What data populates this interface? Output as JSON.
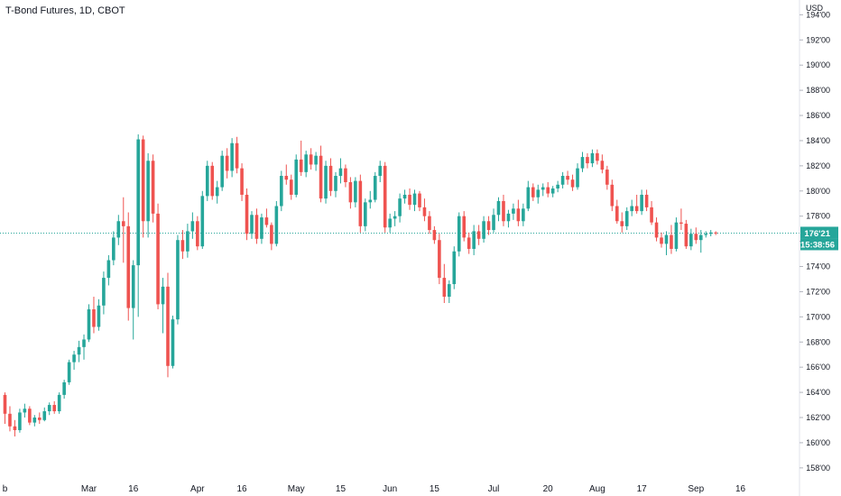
{
  "title": "T-Bond Futures, 1D, CBOT",
  "currency_label": "USD",
  "colors": {
    "up": "#26a69a",
    "down": "#ef5350",
    "axis_text": "#131722",
    "last_price_line": "#26a69a"
  },
  "last_price": {
    "value": "176'21",
    "countdown": "15:38:56",
    "y": 176.656
  },
  "chart_data": {
    "type": "candlestick",
    "title": "T-Bond Futures, 1D, CBOT",
    "ylim": [
      157.2,
      194.6
    ],
    "y_ticks": [
      {
        "value": 158,
        "label": "158'00"
      },
      {
        "value": 160,
        "label": "160'00"
      },
      {
        "value": 162,
        "label": "162'00"
      },
      {
        "value": 164,
        "label": "164'00"
      },
      {
        "value": 166,
        "label": "166'00"
      },
      {
        "value": 168,
        "label": "168'00"
      },
      {
        "value": 170,
        "label": "170'00"
      },
      {
        "value": 172,
        "label": "172'00"
      },
      {
        "value": 174,
        "label": "174'00"
      },
      {
        "value": 176,
        "label": "176'00"
      },
      {
        "value": 178,
        "label": "178'00"
      },
      {
        "value": 180,
        "label": "180'00"
      },
      {
        "value": 182,
        "label": "182'00"
      },
      {
        "value": 184,
        "label": "184'00"
      },
      {
        "value": 186,
        "label": "186'00"
      },
      {
        "value": 188,
        "label": "188'00"
      },
      {
        "value": 190,
        "label": "190'00"
      },
      {
        "value": 192,
        "label": "192'00"
      },
      {
        "value": 194,
        "label": "194'00"
      }
    ],
    "x_ticks": [
      {
        "index": 0,
        "label": "b"
      },
      {
        "index": 17,
        "label": "Mar"
      },
      {
        "index": 26,
        "label": "16"
      },
      {
        "index": 39,
        "label": "Apr"
      },
      {
        "index": 48,
        "label": "16"
      },
      {
        "index": 59,
        "label": "May"
      },
      {
        "index": 68,
        "label": "15"
      },
      {
        "index": 78,
        "label": "Jun"
      },
      {
        "index": 87,
        "label": "15"
      },
      {
        "index": 99,
        "label": "Jul"
      },
      {
        "index": 110,
        "label": "20"
      },
      {
        "index": 120,
        "label": "Aug"
      },
      {
        "index": 129,
        "label": "17"
      },
      {
        "index": 140,
        "label": "Sep"
      },
      {
        "index": 149,
        "label": "16"
      }
    ],
    "ohlc": [
      [
        163.8,
        164.0,
        161.5,
        162.3
      ],
      [
        162.3,
        162.9,
        160.9,
        161.3
      ],
      [
        161.3,
        161.8,
        160.5,
        161.0
      ],
      [
        161.0,
        162.7,
        160.8,
        162.4
      ],
      [
        162.4,
        163.1,
        162.0,
        162.7
      ],
      [
        162.7,
        162.9,
        161.4,
        161.6
      ],
      [
        161.6,
        162.2,
        161.3,
        162.0
      ],
      [
        162.0,
        162.4,
        161.5,
        161.8
      ],
      [
        161.8,
        162.8,
        161.7,
        162.5
      ],
      [
        162.5,
        163.2,
        162.2,
        163.0
      ],
      [
        163.0,
        163.3,
        162.3,
        162.5
      ],
      [
        162.5,
        164.0,
        162.3,
        163.8
      ],
      [
        163.8,
        165.0,
        163.5,
        164.8
      ],
      [
        164.8,
        166.6,
        164.6,
        166.4
      ],
      [
        166.4,
        167.3,
        165.8,
        167.0
      ],
      [
        167.0,
        168.1,
        166.4,
        167.6
      ],
      [
        167.6,
        168.6,
        166.6,
        168.2
      ],
      [
        168.2,
        171.0,
        168.0,
        170.6
      ],
      [
        170.6,
        171.6,
        168.7,
        169.2
      ],
      [
        169.2,
        171.4,
        168.9,
        170.9
      ],
      [
        170.9,
        173.6,
        170.2,
        173.1
      ],
      [
        173.1,
        174.9,
        172.5,
        174.5
      ],
      [
        174.5,
        176.8,
        174.1,
        176.3
      ],
      [
        176.3,
        178.1,
        175.7,
        177.6
      ],
      [
        177.6,
        179.5,
        174.3,
        177.2
      ],
      [
        177.2,
        178.3,
        169.7,
        170.7
      ],
      [
        170.7,
        174.5,
        168.2,
        174.1
      ],
      [
        174.1,
        184.5,
        170.0,
        184.1
      ],
      [
        184.1,
        184.4,
        176.3,
        177.6
      ],
      [
        177.6,
        183.0,
        176.3,
        182.4
      ],
      [
        182.4,
        182.9,
        177.5,
        178.2
      ],
      [
        178.2,
        179.0,
        170.6,
        171.0
      ],
      [
        171.0,
        173.1,
        168.7,
        172.4
      ],
      [
        172.4,
        173.5,
        165.2,
        166.1
      ],
      [
        166.1,
        170.1,
        165.9,
        169.8
      ],
      [
        169.8,
        176.5,
        169.4,
        176.1
      ],
      [
        176.1,
        176.9,
        174.6,
        175.2
      ],
      [
        175.2,
        177.4,
        174.7,
        176.8
      ],
      [
        176.8,
        178.3,
        176.2,
        177.6
      ],
      [
        177.6,
        178.0,
        175.3,
        175.6
      ],
      [
        175.6,
        180.0,
        175.4,
        179.6
      ],
      [
        179.6,
        182.4,
        179.2,
        182.0
      ],
      [
        182.0,
        182.3,
        179.3,
        179.6
      ],
      [
        179.6,
        180.8,
        179.0,
        180.3
      ],
      [
        180.3,
        183.2,
        180.0,
        182.8
      ],
      [
        182.8,
        183.4,
        181.0,
        181.6
      ],
      [
        181.6,
        184.2,
        181.1,
        183.8
      ],
      [
        183.8,
        184.3,
        181.4,
        181.8
      ],
      [
        181.8,
        182.2,
        179.2,
        179.7
      ],
      [
        179.7,
        180.2,
        176.1,
        176.6
      ],
      [
        176.6,
        178.4,
        176.2,
        178.1
      ],
      [
        178.1,
        178.6,
        175.8,
        176.2
      ],
      [
        176.2,
        178.2,
        175.8,
        177.9
      ],
      [
        177.9,
        178.6,
        177.1,
        177.3
      ],
      [
        177.3,
        177.5,
        175.3,
        175.8
      ],
      [
        175.8,
        179.2,
        175.6,
        178.8
      ],
      [
        178.8,
        181.6,
        178.4,
        181.2
      ],
      [
        181.2,
        182.1,
        180.5,
        180.9
      ],
      [
        180.9,
        181.3,
        179.3,
        179.7
      ],
      [
        179.7,
        182.9,
        179.5,
        182.5
      ],
      [
        182.5,
        184.0,
        181.2,
        181.5
      ],
      [
        181.5,
        183.2,
        181.1,
        182.9
      ],
      [
        182.9,
        183.4,
        181.7,
        182.1
      ],
      [
        182.1,
        183.1,
        181.6,
        182.8
      ],
      [
        182.8,
        183.6,
        179.1,
        179.4
      ],
      [
        179.4,
        182.4,
        179.0,
        182.0
      ],
      [
        182.0,
        182.6,
        179.6,
        180.0
      ],
      [
        180.0,
        181.5,
        179.5,
        181.2
      ],
      [
        181.2,
        182.6,
        180.6,
        181.8
      ],
      [
        181.8,
        182.1,
        180.3,
        180.7
      ],
      [
        180.7,
        181.1,
        178.6,
        179.1
      ],
      [
        179.1,
        181.1,
        178.7,
        180.8
      ],
      [
        180.8,
        181.3,
        176.7,
        177.2
      ],
      [
        177.2,
        179.4,
        176.8,
        179.1
      ],
      [
        179.1,
        180.0,
        178.6,
        179.3
      ],
      [
        179.3,
        181.5,
        179.1,
        181.2
      ],
      [
        181.2,
        182.4,
        180.7,
        182.0
      ],
      [
        182.0,
        182.3,
        176.7,
        177.1
      ],
      [
        177.1,
        178.2,
        176.7,
        177.8
      ],
      [
        177.8,
        178.4,
        177.2,
        178.0
      ],
      [
        178.0,
        179.8,
        177.5,
        179.4
      ],
      [
        179.4,
        180.1,
        179.0,
        179.7
      ],
      [
        179.7,
        180.2,
        178.5,
        178.9
      ],
      [
        178.9,
        180.1,
        178.4,
        179.8
      ],
      [
        179.8,
        180.0,
        178.4,
        178.7
      ],
      [
        178.7,
        179.4,
        177.6,
        178.0
      ],
      [
        178.0,
        178.4,
        176.6,
        176.9
      ],
      [
        176.9,
        177.2,
        175.8,
        176.1
      ],
      [
        176.1,
        176.6,
        172.6,
        173.1
      ],
      [
        173.1,
        174.2,
        171.1,
        171.6
      ],
      [
        171.6,
        172.9,
        171.1,
        172.6
      ],
      [
        172.6,
        175.6,
        172.2,
        175.2
      ],
      [
        175.2,
        178.3,
        174.8,
        178.0
      ],
      [
        178.0,
        178.4,
        176.0,
        176.3
      ],
      [
        176.3,
        176.7,
        175.0,
        175.4
      ],
      [
        175.4,
        177.3,
        174.9,
        176.8
      ],
      [
        176.8,
        177.3,
        175.7,
        176.2
      ],
      [
        176.2,
        178.0,
        175.9,
        177.6
      ],
      [
        177.6,
        178.0,
        176.5,
        176.9
      ],
      [
        176.9,
        178.6,
        176.7,
        178.1
      ],
      [
        178.1,
        179.5,
        177.6,
        179.2
      ],
      [
        179.2,
        179.7,
        177.2,
        177.6
      ],
      [
        177.6,
        178.5,
        177.1,
        178.2
      ],
      [
        178.2,
        179.0,
        177.7,
        178.6
      ],
      [
        178.6,
        179.3,
        177.2,
        177.6
      ],
      [
        177.6,
        179.0,
        177.2,
        178.6
      ],
      [
        178.6,
        180.8,
        178.4,
        180.3
      ],
      [
        180.3,
        180.6,
        179.2,
        179.5
      ],
      [
        179.5,
        180.5,
        179.0,
        180.1
      ],
      [
        180.1,
        180.6,
        179.6,
        180.3
      ],
      [
        180.3,
        180.7,
        179.5,
        179.8
      ],
      [
        179.8,
        180.4,
        179.5,
        180.2
      ],
      [
        180.2,
        180.8,
        179.9,
        180.5
      ],
      [
        180.5,
        181.5,
        180.2,
        181.2
      ],
      [
        181.2,
        181.6,
        180.5,
        180.9
      ],
      [
        180.9,
        181.3,
        180.0,
        180.3
      ],
      [
        180.3,
        182.2,
        180.1,
        181.8
      ],
      [
        181.8,
        183.1,
        181.5,
        182.7
      ],
      [
        182.7,
        183.0,
        181.8,
        182.2
      ],
      [
        182.2,
        183.3,
        181.9,
        183.0
      ],
      [
        183.0,
        183.3,
        182.1,
        182.4
      ],
      [
        182.4,
        182.9,
        181.4,
        181.7
      ],
      [
        181.7,
        182.0,
        180.1,
        180.5
      ],
      [
        180.5,
        180.9,
        178.4,
        178.8
      ],
      [
        178.8,
        179.3,
        177.4,
        177.6
      ],
      [
        177.6,
        178.3,
        176.7,
        177.2
      ],
      [
        177.2,
        178.7,
        176.9,
        178.4
      ],
      [
        178.4,
        179.3,
        178.0,
        178.8
      ],
      [
        178.8,
        179.7,
        178.2,
        178.4
      ],
      [
        178.4,
        180.1,
        178.1,
        179.7
      ],
      [
        179.7,
        180.1,
        178.4,
        178.7
      ],
      [
        178.7,
        179.2,
        177.3,
        177.5
      ],
      [
        177.5,
        177.9,
        176.0,
        176.3
      ],
      [
        176.3,
        176.7,
        175.5,
        175.8
      ],
      [
        175.8,
        176.8,
        174.9,
        176.5
      ],
      [
        176.5,
        177.3,
        175.0,
        175.4
      ],
      [
        175.4,
        177.9,
        175.2,
        177.5
      ],
      [
        177.5,
        178.6,
        176.9,
        177.4
      ],
      [
        177.4,
        177.7,
        175.4,
        175.6
      ],
      [
        175.6,
        177.0,
        175.3,
        176.6
      ],
      [
        176.6,
        177.1,
        175.8,
        176.1
      ],
      [
        176.1,
        176.9,
        175.1,
        176.5
      ],
      [
        176.5,
        176.8,
        176.3,
        176.6
      ],
      [
        176.6,
        176.9,
        176.4,
        176.7
      ],
      [
        176.7,
        176.8,
        176.5,
        176.66
      ]
    ]
  }
}
